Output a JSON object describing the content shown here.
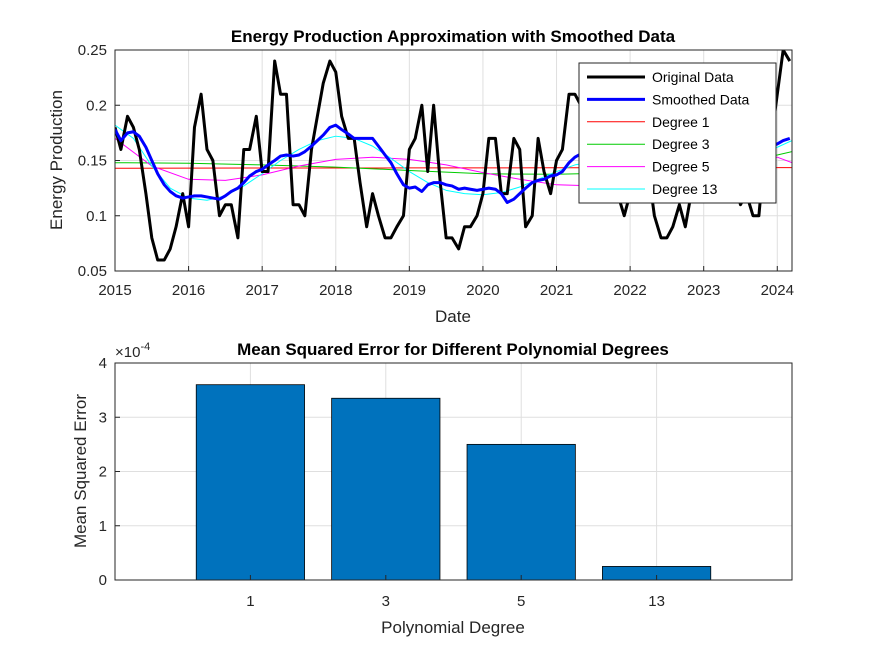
{
  "chart_data": [
    {
      "type": "line",
      "title": "Energy Production Approximation with Smoothed Data",
      "xlabel": "Date",
      "ylabel": "Energy Production",
      "xlim": [
        2015,
        2024.2
      ],
      "ylim": [
        0.05,
        0.25
      ],
      "xticks": [
        "2015",
        "2016",
        "2017",
        "2018",
        "2019",
        "2020",
        "2021",
        "2022",
        "2023",
        "2024"
      ],
      "yticks": [
        "0.05",
        "0.1",
        "0.15",
        "0.2",
        "0.25"
      ],
      "grid": true,
      "legend_position": "top-right",
      "series": [
        {
          "name": "Original Data",
          "color": "#000000",
          "x": [
            2015.0,
            2015.08,
            2015.17,
            2015.25,
            2015.33,
            2015.42,
            2015.5,
            2015.58,
            2015.67,
            2015.75,
            2015.83,
            2015.92,
            2016.0,
            2016.08,
            2016.17,
            2016.25,
            2016.33,
            2016.42,
            2016.5,
            2016.58,
            2016.67,
            2016.75,
            2016.83,
            2016.92,
            2017.0,
            2017.08,
            2017.17,
            2017.25,
            2017.33,
            2017.42,
            2017.5,
            2017.58,
            2017.67,
            2017.75,
            2017.83,
            2017.92,
            2018.0,
            2018.08,
            2018.17,
            2018.25,
            2018.33,
            2018.42,
            2018.5,
            2018.58,
            2018.67,
            2018.75,
            2018.83,
            2018.92,
            2019.0,
            2019.08,
            2019.17,
            2019.25,
            2019.33,
            2019.42,
            2019.5,
            2019.58,
            2019.67,
            2019.75,
            2019.83,
            2019.92,
            2020.0,
            2020.08,
            2020.17,
            2020.25,
            2020.33,
            2020.42,
            2020.5,
            2020.58,
            2020.67,
            2020.75,
            2020.83,
            2020.92,
            2021.0,
            2021.08,
            2021.17,
            2021.25,
            2021.33,
            2021.42,
            2021.5,
            2021.58,
            2021.67,
            2021.75,
            2021.83,
            2021.92,
            2022.0,
            2022.08,
            2022.17,
            2022.25,
            2022.33,
            2022.42,
            2022.5,
            2022.58,
            2022.67,
            2022.75,
            2022.83,
            2022.92,
            2023.0,
            2023.08,
            2023.17,
            2023.25,
            2023.33,
            2023.42,
            2023.5,
            2023.58,
            2023.67,
            2023.75,
            2023.83,
            2023.92,
            2024.0,
            2024.08,
            2024.17
          ],
          "y": [
            0.18,
            0.16,
            0.19,
            0.18,
            0.16,
            0.12,
            0.08,
            0.06,
            0.06,
            0.07,
            0.09,
            0.12,
            0.09,
            0.18,
            0.21,
            0.16,
            0.15,
            0.1,
            0.11,
            0.11,
            0.08,
            0.16,
            0.16,
            0.19,
            0.14,
            0.14,
            0.24,
            0.21,
            0.21,
            0.11,
            0.11,
            0.1,
            0.16,
            0.19,
            0.22,
            0.24,
            0.23,
            0.19,
            0.17,
            0.17,
            0.13,
            0.09,
            0.12,
            0.1,
            0.08,
            0.08,
            0.09,
            0.1,
            0.16,
            0.17,
            0.2,
            0.14,
            0.2,
            0.13,
            0.08,
            0.08,
            0.07,
            0.09,
            0.09,
            0.1,
            0.12,
            0.17,
            0.17,
            0.12,
            0.12,
            0.17,
            0.16,
            0.09,
            0.1,
            0.17,
            0.14,
            0.12,
            0.15,
            0.16,
            0.21,
            0.21,
            0.2,
            0.2,
            0.14,
            0.14,
            0.13,
            0.13,
            0.12,
            0.1,
            0.12,
            0.13,
            0.14,
            0.14,
            0.1,
            0.08,
            0.08,
            0.09,
            0.11,
            0.09,
            0.12,
            0.13,
            0.15,
            0.14,
            0.12,
            0.12,
            0.12,
            0.13,
            0.11,
            0.12,
            0.1,
            0.1,
            0.16,
            0.17,
            0.21,
            0.25,
            0.24
          ]
        },
        {
          "name": "Smoothed Data",
          "color": "#0000ff",
          "x": [
            2015.0,
            2015.08,
            2015.17,
            2015.25,
            2015.33,
            2015.42,
            2015.5,
            2015.58,
            2015.67,
            2015.75,
            2015.83,
            2015.92,
            2016.0,
            2016.08,
            2016.17,
            2016.25,
            2016.33,
            2016.42,
            2016.5,
            2016.58,
            2016.67,
            2016.75,
            2016.83,
            2016.92,
            2017.0,
            2017.08,
            2017.17,
            2017.25,
            2017.33,
            2017.42,
            2017.5,
            2017.58,
            2017.67,
            2017.75,
            2017.83,
            2017.92,
            2018.0,
            2018.08,
            2018.17,
            2018.25,
            2018.33,
            2018.42,
            2018.5,
            2018.58,
            2018.67,
            2018.75,
            2018.83,
            2018.92,
            2019.0,
            2019.08,
            2019.17,
            2019.25,
            2019.33,
            2019.42,
            2019.5,
            2019.58,
            2019.67,
            2019.75,
            2019.83,
            2019.92,
            2020.0,
            2020.08,
            2020.17,
            2020.25,
            2020.33,
            2020.42,
            2020.5,
            2020.58,
            2020.67,
            2020.75,
            2020.83,
            2020.92,
            2021.0,
            2021.08,
            2021.17,
            2021.25,
            2021.33,
            2021.42,
            2021.5,
            2021.58,
            2021.67,
            2021.75,
            2021.83,
            2021.92,
            2022.0,
            2022.08,
            2022.17,
            2022.25,
            2022.33,
            2022.42,
            2022.5,
            2022.58,
            2022.67,
            2022.75,
            2022.83,
            2022.92,
            2023.0,
            2023.08,
            2023.17,
            2023.25,
            2023.33,
            2023.42,
            2023.5,
            2023.58,
            2023.67,
            2023.75,
            2023.83,
            2023.92,
            2024.0,
            2024.08,
            2024.17
          ],
          "y": [
            0.178,
            0.168,
            0.175,
            0.176,
            0.172,
            0.162,
            0.15,
            0.138,
            0.128,
            0.122,
            0.118,
            0.116,
            0.117,
            0.118,
            0.118,
            0.117,
            0.116,
            0.115,
            0.118,
            0.122,
            0.125,
            0.13,
            0.136,
            0.14,
            0.142,
            0.146,
            0.15,
            0.154,
            0.155,
            0.154,
            0.155,
            0.158,
            0.163,
            0.168,
            0.173,
            0.18,
            0.182,
            0.178,
            0.174,
            0.17,
            0.17,
            0.17,
            0.17,
            0.163,
            0.155,
            0.148,
            0.138,
            0.128,
            0.125,
            0.126,
            0.122,
            0.128,
            0.13,
            0.13,
            0.128,
            0.127,
            0.124,
            0.125,
            0.124,
            0.123,
            0.124,
            0.125,
            0.124,
            0.12,
            0.112,
            0.115,
            0.12,
            0.125,
            0.13,
            0.132,
            0.133,
            0.136,
            0.137,
            0.14,
            0.148,
            0.153,
            0.156,
            0.158,
            0.156,
            0.153,
            0.148,
            0.145,
            0.142,
            0.14,
            0.14,
            0.138,
            0.136,
            0.135,
            0.13,
            0.128,
            0.129,
            0.131,
            0.133,
            0.133,
            0.134,
            0.136,
            0.138,
            0.138,
            0.137,
            0.137,
            0.138,
            0.14,
            0.145,
            0.15,
            0.155,
            0.158,
            0.16,
            0.163,
            0.165,
            0.168,
            0.17
          ]
        },
        {
          "name": "Degree 1",
          "color": "#ff0000",
          "x": [
            2015,
            2016,
            2017,
            2018,
            2019,
            2020,
            2021,
            2022,
            2023,
            2024,
            2024.2
          ],
          "y": [
            0.143,
            0.1431,
            0.1432,
            0.1432,
            0.1433,
            0.1433,
            0.1434,
            0.1434,
            0.1435,
            0.1435,
            0.1435
          ]
        },
        {
          "name": "Degree 3",
          "color": "#00cc00",
          "x": [
            2015,
            2016,
            2017,
            2018,
            2019,
            2020,
            2021,
            2022,
            2023,
            2024,
            2024.2
          ],
          "y": [
            0.148,
            0.1475,
            0.146,
            0.144,
            0.141,
            0.138,
            0.1375,
            0.139,
            0.143,
            0.155,
            0.158
          ]
        },
        {
          "name": "Degree 5",
          "color": "#ff00ff",
          "x": [
            2015,
            2015.5,
            2016,
            2016.5,
            2017,
            2017.5,
            2018,
            2018.5,
            2019,
            2019.5,
            2020,
            2020.5,
            2021,
            2021.5,
            2022,
            2022.5,
            2023,
            2023.5,
            2024,
            2024.2
          ],
          "y": [
            0.17,
            0.145,
            0.133,
            0.132,
            0.137,
            0.145,
            0.151,
            0.153,
            0.151,
            0.146,
            0.139,
            0.133,
            0.128,
            0.127,
            0.129,
            0.133,
            0.138,
            0.144,
            0.153,
            0.148
          ]
        },
        {
          "name": "Degree 13",
          "color": "#00ffff",
          "x": [
            2015,
            2015.25,
            2015.5,
            2015.75,
            2016,
            2016.25,
            2016.5,
            2016.75,
            2017,
            2017.25,
            2017.5,
            2017.75,
            2018,
            2018.25,
            2018.5,
            2018.75,
            2019,
            2019.25,
            2019.5,
            2019.75,
            2020,
            2020.25,
            2020.5,
            2020.75,
            2021,
            2021.25,
            2021.5,
            2021.75,
            2022,
            2022.25,
            2022.5,
            2022.75,
            2023,
            2023.25,
            2023.5,
            2023.75,
            2024,
            2024.2
          ],
          "y": [
            0.182,
            0.17,
            0.145,
            0.125,
            0.116,
            0.114,
            0.118,
            0.127,
            0.138,
            0.15,
            0.16,
            0.168,
            0.172,
            0.17,
            0.163,
            0.152,
            0.14,
            0.13,
            0.123,
            0.12,
            0.119,
            0.121,
            0.126,
            0.133,
            0.14,
            0.146,
            0.149,
            0.148,
            0.143,
            0.136,
            0.131,
            0.13,
            0.133,
            0.14,
            0.148,
            0.155,
            0.162,
            0.168
          ]
        }
      ]
    },
    {
      "type": "bar",
      "title": "Mean Squared Error for Different Polynomial Degrees",
      "xlabel": "Polynomial Degree",
      "ylabel": "Mean Squared Error",
      "exponent_label": "×10",
      "exponent": "-4",
      "categories": [
        "1",
        "3",
        "5",
        "13"
      ],
      "values": [
        3.6,
        3.35,
        2.5,
        0.25
      ],
      "ylim": [
        0,
        4
      ],
      "yticks": [
        "0",
        "1",
        "2",
        "3",
        "4"
      ],
      "bar_color": "#0072bd",
      "grid": true
    }
  ]
}
